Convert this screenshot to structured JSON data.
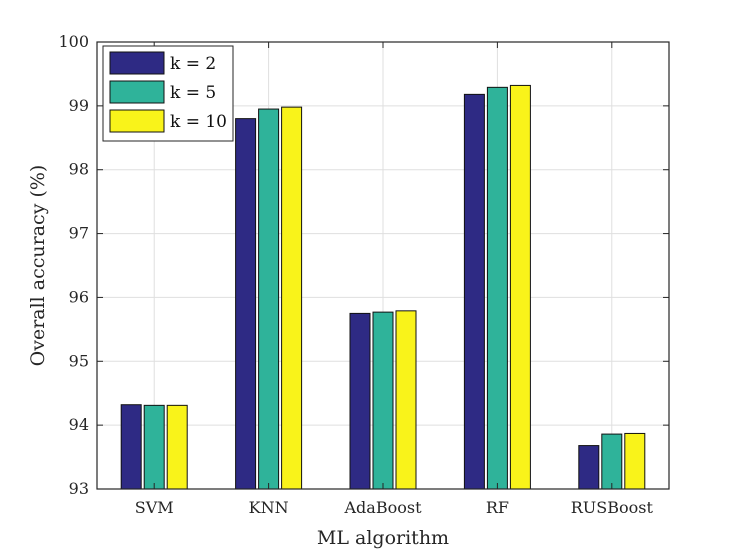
{
  "chart_data": {
    "type": "bar",
    "title": "",
    "xlabel": "ML algorithm",
    "ylabel": "Overall accuracy (%)",
    "ylim": [
      93,
      100
    ],
    "yticks": [
      93,
      94,
      95,
      96,
      97,
      98,
      99,
      100
    ],
    "grid": true,
    "legend_position": "top-left",
    "categories": [
      "SVM",
      "KNN",
      "AdaBoost",
      "RF",
      "RUSBoost"
    ],
    "series": [
      {
        "name": "k = 2",
        "color": "#2e2a84",
        "values": [
          94.32,
          98.8,
          95.75,
          99.18,
          93.68
        ]
      },
      {
        "name": "k = 5",
        "color": "#2fb39a",
        "values": [
          94.31,
          98.95,
          95.77,
          99.29,
          93.86
        ]
      },
      {
        "name": "k = 10",
        "color": "#f9f31a",
        "values": [
          94.31,
          98.98,
          95.79,
          99.32,
          93.87
        ]
      }
    ]
  }
}
